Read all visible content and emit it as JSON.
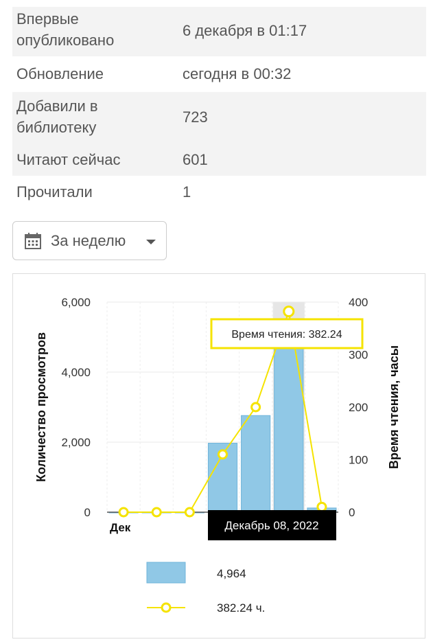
{
  "info": {
    "rows": [
      {
        "label_lines": [
          "Впервые",
          "опубликовано"
        ],
        "value": "6 декабря в 01:17"
      },
      {
        "label_lines": [
          "Обновление"
        ],
        "value": "сегодня в 00:32"
      },
      {
        "label_lines": [
          "Добавили в",
          "библиотеку"
        ],
        "value": "723"
      },
      {
        "label_lines": [
          "Читают сейчас"
        ],
        "value": "601"
      },
      {
        "label_lines": [
          "Прочитали"
        ],
        "value": "1"
      }
    ]
  },
  "period_selector": {
    "label": "За неделю",
    "icon": "calendar-icon"
  },
  "chart_data": {
    "type": "bar",
    "categories": [
      "Дек",
      "",
      "",
      "",
      "",
      "",
      ""
    ],
    "series": [
      {
        "type": "bar",
        "axis": "left",
        "color": "#90c8e6",
        "values": [
          0,
          0,
          0,
          1970,
          2760,
          4964,
          120
        ]
      },
      {
        "type": "line",
        "axis": "right",
        "color": "#f5e300",
        "values": [
          0,
          0,
          0,
          110,
          200,
          382.24,
          10
        ]
      }
    ],
    "ylabel": "Количество просмотров",
    "y2label": "Время чтения, часы",
    "ylim": [
      0,
      6000
    ],
    "y2lim": [
      0,
      400
    ],
    "yticks": [
      "6,000",
      "4,000",
      "2,000",
      "0"
    ],
    "y2ticks": [
      "400",
      "300",
      "200",
      "100",
      "0"
    ],
    "highlight_index": 5,
    "tooltip": "Время чтения: 382.24",
    "x_tooltip": "Декабрь 08, 2022",
    "legend": [
      {
        "kind": "bar",
        "text": "4,964"
      },
      {
        "kind": "line",
        "text": "382.24 ч."
      }
    ],
    "grid": true
  }
}
